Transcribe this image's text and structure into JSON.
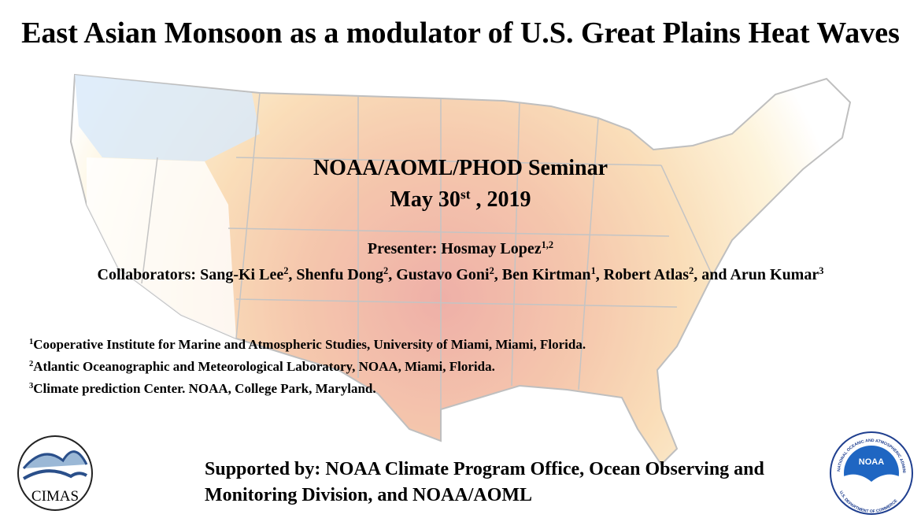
{
  "slide": {
    "title": "East Asian Monsoon as a modulator of U.S. Great Plains Heat Waves",
    "seminar": "NOAA/AOML/PHOD Seminar",
    "date": {
      "text": "May 30",
      "sup": "st",
      "rest": " , 2019"
    },
    "presenter": {
      "text": "Presenter: Hosmay Lopez",
      "sup": "1,2"
    },
    "collaborators": [
      {
        "text": "Collaborators: Sang-Ki Lee",
        "sup": "2"
      },
      {
        "text": ", Shenfu Dong",
        "sup": "2"
      },
      {
        "text": ", Gustavo Goni",
        "sup": "2"
      },
      {
        "text": ", Ben Kirtman",
        "sup": "1"
      },
      {
        "text": ", Robert Atlas",
        "sup": "2"
      },
      {
        "text": ", and Arun Kumar",
        "sup": "3"
      }
    ],
    "affiliations": [
      {
        "sup": "1",
        "text": "Cooperative Institute for Marine and Atmospheric Studies, University of Miami, Miami, Florida."
      },
      {
        "sup": "2",
        "text": "Atlantic Oceanographic and Meteorological Laboratory, NOAA, Miami, Florida."
      },
      {
        "sup": "3",
        "text": "Climate prediction Center. NOAA, College Park, Maryland."
      }
    ],
    "support": "Supported by: NOAA Climate Program Office, Ocean Observing and Monitoring Division, and NOAA/AOML",
    "logos": {
      "cimas": "CIMAS",
      "noaa": "NOAA",
      "noaa_ring_top": "NATIONAL OCEANIC AND ATMOSPHERIC ADMINISTRATION",
      "noaa_ring_bottom": "U.S. DEPARTMENT OF COMMERCE"
    }
  }
}
